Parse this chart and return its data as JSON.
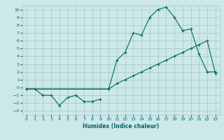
{
  "xlabel": "Humidex (Indice chaleur)",
  "bg_color": "#cce8e8",
  "grid_color": "#aacccc",
  "line_color": "#006666",
  "xlim": [
    -0.5,
    23.5
  ],
  "ylim": [
    -3.5,
    10.5
  ],
  "xticks": [
    0,
    1,
    2,
    3,
    4,
    5,
    6,
    7,
    8,
    9,
    10,
    11,
    12,
    13,
    14,
    15,
    16,
    17,
    18,
    19,
    20,
    21,
    22,
    23
  ],
  "yticks": [
    -3,
    -2,
    -1,
    0,
    1,
    2,
    3,
    4,
    5,
    6,
    7,
    8,
    9,
    10
  ],
  "line1_x": [
    0,
    1,
    2,
    3,
    4,
    5,
    6,
    7,
    8,
    9
  ],
  "line1_y": [
    -0.2,
    -0.2,
    -1.0,
    -1.0,
    -2.3,
    -1.3,
    -1.0,
    -1.8,
    -1.8,
    -1.5
  ],
  "line2_x": [
    0,
    10,
    11,
    12,
    13,
    14,
    15,
    16,
    17,
    18,
    19,
    20,
    21,
    22,
    23
  ],
  "line2_y": [
    -0.2,
    -0.2,
    3.5,
    4.5,
    7.0,
    6.7,
    9.0,
    10.0,
    10.3,
    9.0,
    7.3,
    7.5,
    4.3,
    2.0,
    2.0
  ],
  "line3_x": [
    0,
    10,
    11,
    12,
    13,
    14,
    15,
    16,
    17,
    18,
    19,
    20,
    21,
    22,
    23
  ],
  "line3_y": [
    -0.2,
    -0.2,
    0.5,
    1.0,
    1.5,
    2.0,
    2.5,
    3.0,
    3.5,
    4.0,
    4.5,
    5.0,
    5.5,
    6.0,
    1.8
  ]
}
